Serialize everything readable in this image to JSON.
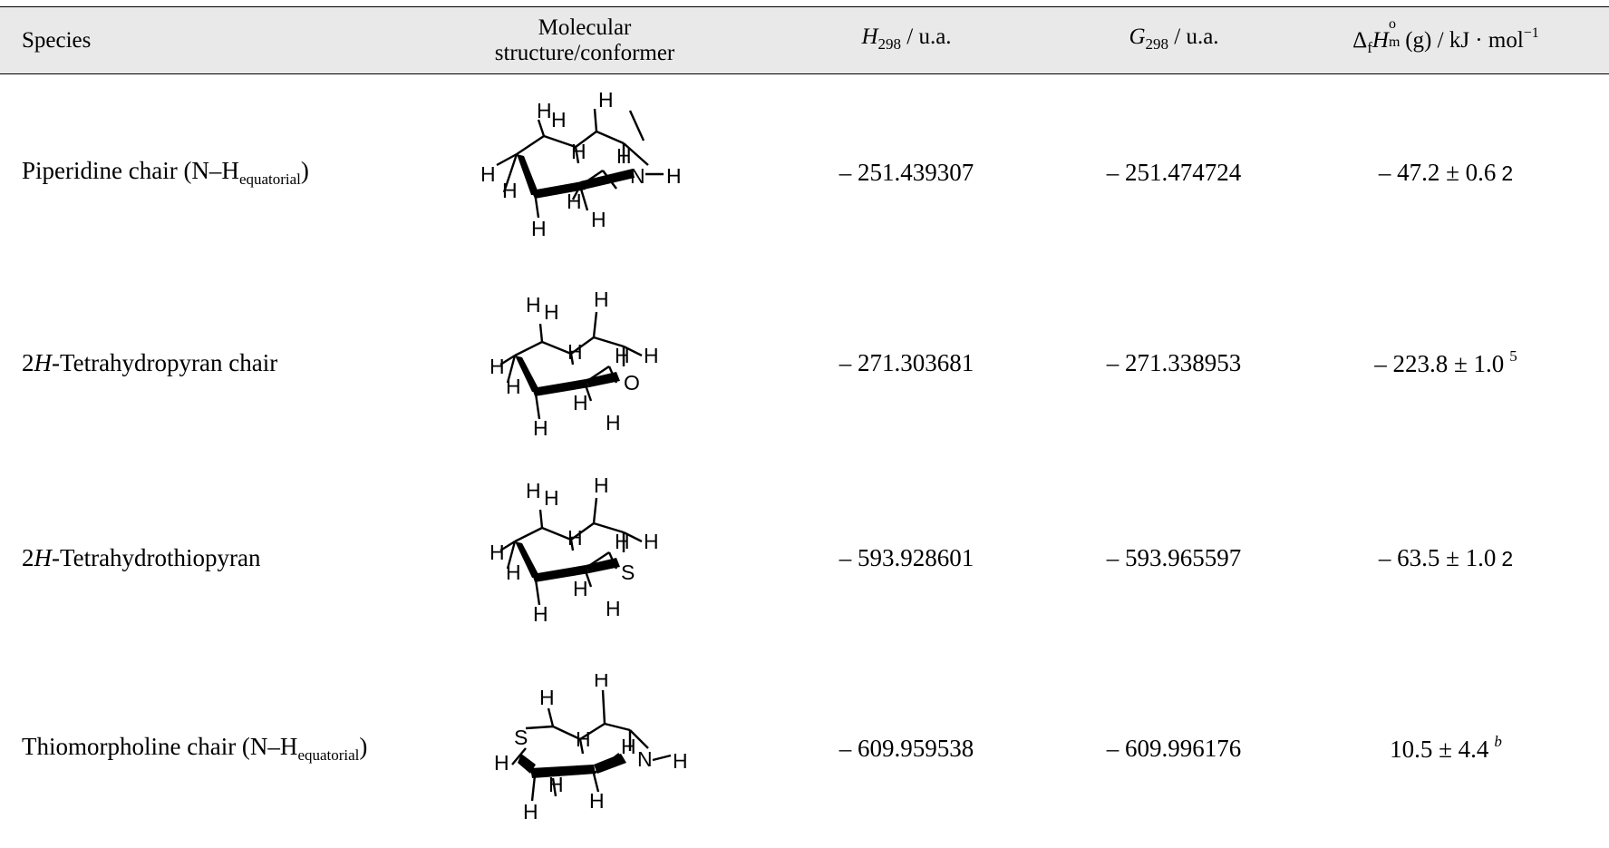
{
  "header": {
    "species": "Species",
    "structure_line1": "Molecular",
    "structure_line2": "structure/conformer",
    "h298_symbol": "H",
    "h298_sub": "298",
    "h298_unit": " / u.a.",
    "g298_symbol": "G",
    "g298_sub": "298",
    "g298_unit": " / u.a.",
    "dfh_delta": "Δ",
    "dfh_f": "f",
    "dfh_H": "H",
    "dfh_sup": "o",
    "dfh_sub": "m",
    "dfh_rest": " (g) / kJ · mol",
    "dfh_exp": "−1"
  },
  "rows": [
    {
      "name_pre": "Piperidine chair (N–H",
      "name_ital": "",
      "name_sub": "equatorial",
      "name_post": ")",
      "heteroatom": "N",
      "h298": "– 251.439307",
      "g298": "– 251.474724",
      "dfh": "– 47.2 ± 0.6",
      "ref": "2",
      "ref_style": "plain"
    },
    {
      "name_pre": "2",
      "name_ital": "H",
      "name_sub": "",
      "name_post": "-Tetrahydropyran chair",
      "heteroatom": "O",
      "h298": "– 271.303681",
      "g298": "– 271.338953",
      "dfh": "– 223.8 ± 1.0",
      "ref": "5",
      "ref_style": "sup"
    },
    {
      "name_pre": "2",
      "name_ital": "H",
      "name_sub": "",
      "name_post": "-Tetrahydrothiopyran",
      "heteroatom": "S",
      "h298": "– 593.928601",
      "g298": "– 593.965597",
      "dfh": "– 63.5 ± 1.0",
      "ref": "2",
      "ref_style": "plain"
    },
    {
      "name_pre": "Thiomorpholine chair (N–H",
      "name_ital": "",
      "name_sub": "equatorial",
      "name_post": ")",
      "heteroatom": "N",
      "heteroatom2": "S",
      "h298": "– 609.959538",
      "g298": "– 609.996176",
      "dfh": "10.5 ± 4.4",
      "ref": "b",
      "ref_style": "sup-italic"
    }
  ],
  "atom_label": "H"
}
